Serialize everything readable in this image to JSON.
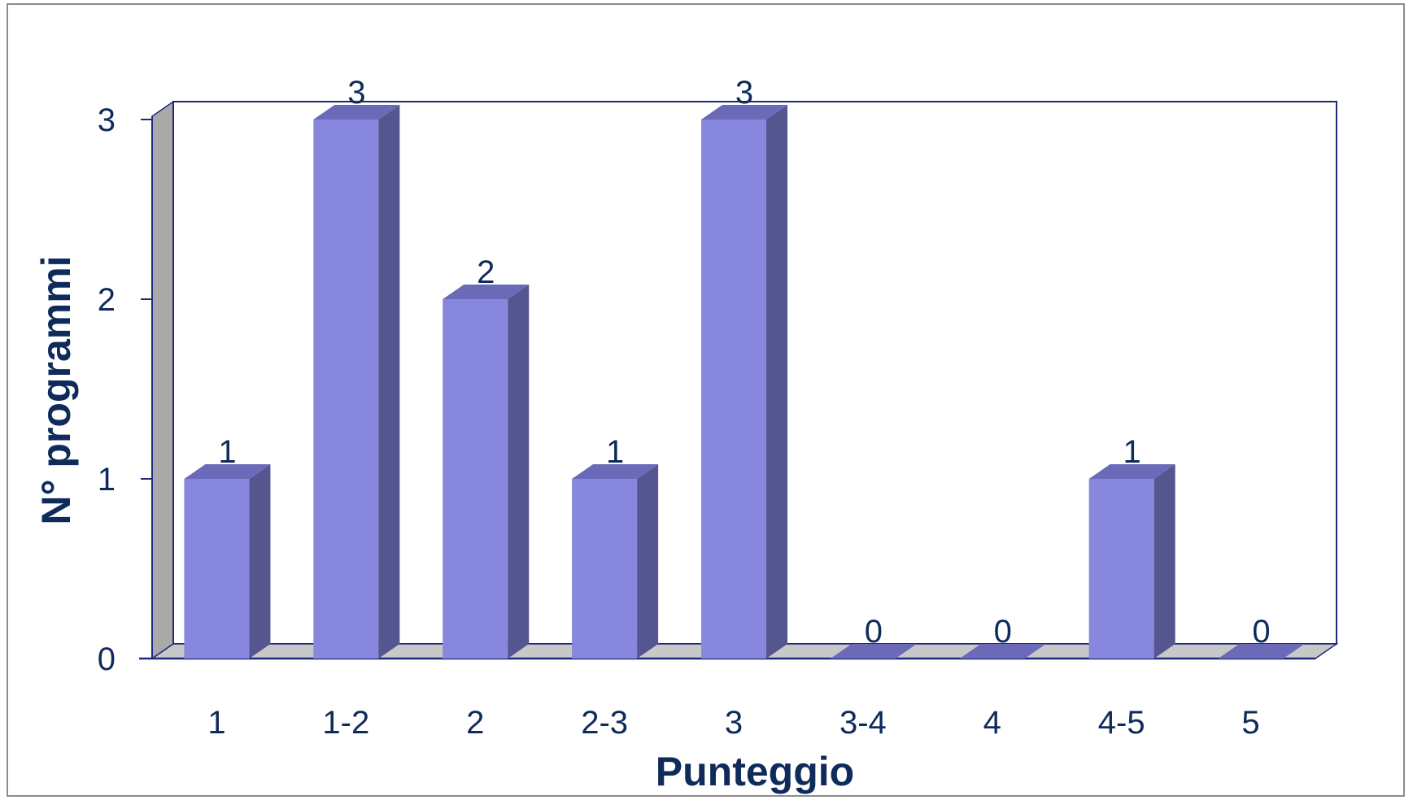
{
  "chart_data": {
    "type": "bar",
    "style": "3d-column",
    "categories": [
      "1",
      "1-2",
      "2",
      "2-3",
      "3",
      "3-4",
      "4",
      "4-5",
      "5"
    ],
    "values": [
      1,
      3,
      2,
      1,
      3,
      0,
      0,
      1,
      0
    ],
    "title": "",
    "xlabel": "Punteggio",
    "ylabel": "N° programmi",
    "ylim": [
      0,
      3
    ],
    "yticks": [
      0,
      1,
      2,
      3
    ],
    "grid": false,
    "data_labels": true,
    "colors": {
      "bar_front": "#8787de",
      "bar_side": "#55558f",
      "bar_top": "#6a6ab8",
      "floor": "#c8c8c8",
      "wall": "#a9a9a9",
      "plot_border": "#1f2b7a",
      "text": "#0f2b5b"
    }
  }
}
